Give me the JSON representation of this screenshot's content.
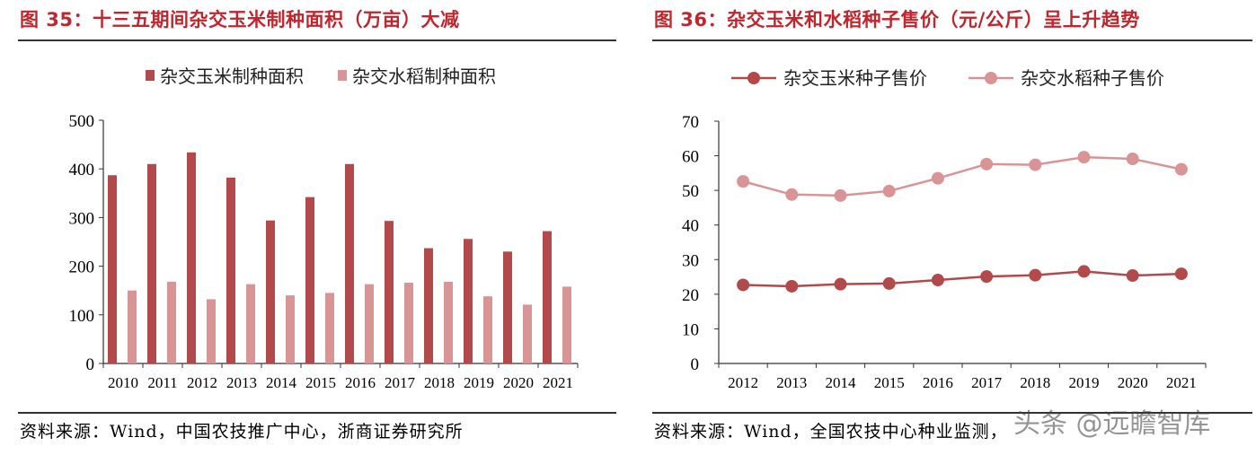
{
  "left_panel": {
    "title": "图 35：十三五期间杂交玉米制种面积（万亩）大减",
    "source": "资料来源：Wind，中国农技推广中心，浙商证券研究所"
  },
  "right_panel": {
    "title": "图 36：杂交玉米和水稻种子售价（元/公斤）呈上升趋势",
    "source": "资料来源：Wind，全国农技中心种业监测，"
  },
  "watermark": "头条 @远瞻智库",
  "colors": {
    "dark_red": "#b24a4b",
    "light_pink": "#d99596",
    "title_red": "#c0262d"
  },
  "chart_data": [
    {
      "type": "bar",
      "title": "",
      "categories": [
        "2010",
        "2011",
        "2012",
        "2013",
        "2014",
        "2015",
        "2016",
        "2017",
        "2018",
        "2019",
        "2020",
        "2021"
      ],
      "series": [
        {
          "name": "杂交玉米制种面积",
          "color": "#b24a4b",
          "values": [
            387,
            410,
            434,
            382,
            294,
            342,
            410,
            293,
            237,
            256,
            230,
            272
          ]
        },
        {
          "name": "杂交水稻制种面积",
          "color": "#d99596",
          "values": [
            150,
            168,
            132,
            163,
            140,
            145,
            163,
            166,
            168,
            138,
            121,
            158
          ]
        }
      ],
      "ylim": [
        0,
        500
      ],
      "yticks": [
        0,
        100,
        200,
        300,
        400,
        500
      ],
      "grid": false,
      "legend_position": "top"
    },
    {
      "type": "line",
      "title": "",
      "x": [
        "2012",
        "2013",
        "2014",
        "2015",
        "2016",
        "2017",
        "2018",
        "2019",
        "2020",
        "2021"
      ],
      "series": [
        {
          "name": "杂交玉米种子售价",
          "color": "#b24a4b",
          "values": [
            22.7,
            22.3,
            22.9,
            23.1,
            24.1,
            25.1,
            25.5,
            26.6,
            25.4,
            25.9
          ]
        },
        {
          "name": "杂交水稻种子售价",
          "color": "#d99596",
          "values": [
            52.6,
            48.8,
            48.5,
            49.8,
            53.5,
            57.6,
            57.4,
            59.6,
            59.1,
            56.1
          ]
        }
      ],
      "ylim": [
        0,
        70
      ],
      "yticks": [
        0,
        10,
        20,
        30,
        40,
        50,
        60,
        70
      ],
      "grid": false,
      "legend_position": "top"
    }
  ]
}
